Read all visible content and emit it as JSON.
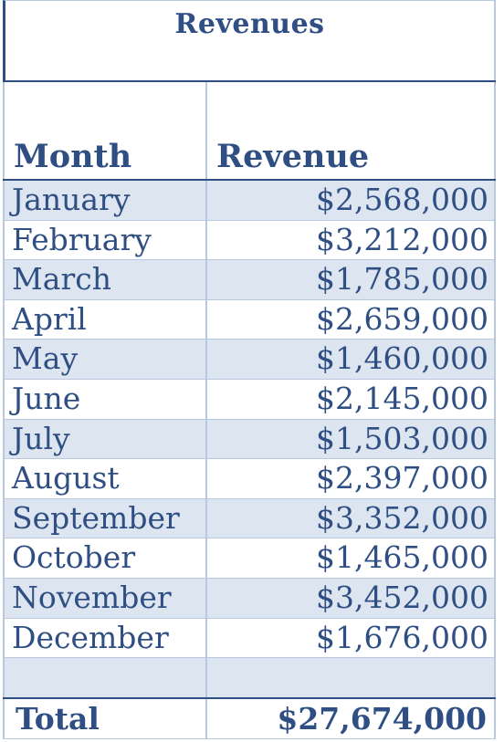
{
  "table": {
    "title": "Revenues",
    "headers": {
      "month": "Month",
      "revenue": "Revenue"
    },
    "rows": [
      {
        "month": "January",
        "revenue": "$2,568,000"
      },
      {
        "month": "February",
        "revenue": "$3,212,000"
      },
      {
        "month": "March",
        "revenue": "$1,785,000"
      },
      {
        "month": "April",
        "revenue": "$2,659,000"
      },
      {
        "month": "May",
        "revenue": "$1,460,000"
      },
      {
        "month": "June",
        "revenue": "$2,145,000"
      },
      {
        "month": "July",
        "revenue": "$1,503,000"
      },
      {
        "month": "August",
        "revenue": "$2,397,000"
      },
      {
        "month": "September",
        "revenue": "$3,352,000"
      },
      {
        "month": "October",
        "revenue": "$1,465,000"
      },
      {
        "month": "November",
        "revenue": "$3,452,000"
      },
      {
        "month": "December",
        "revenue": "$1,676,000"
      },
      {
        "month": "",
        "revenue": ""
      }
    ],
    "total": {
      "label": "Total",
      "value": "$27,674,000"
    }
  },
  "colors": {
    "text": "#2f4f84",
    "shade": "#dde5f0",
    "grid": "#b8c8de"
  }
}
